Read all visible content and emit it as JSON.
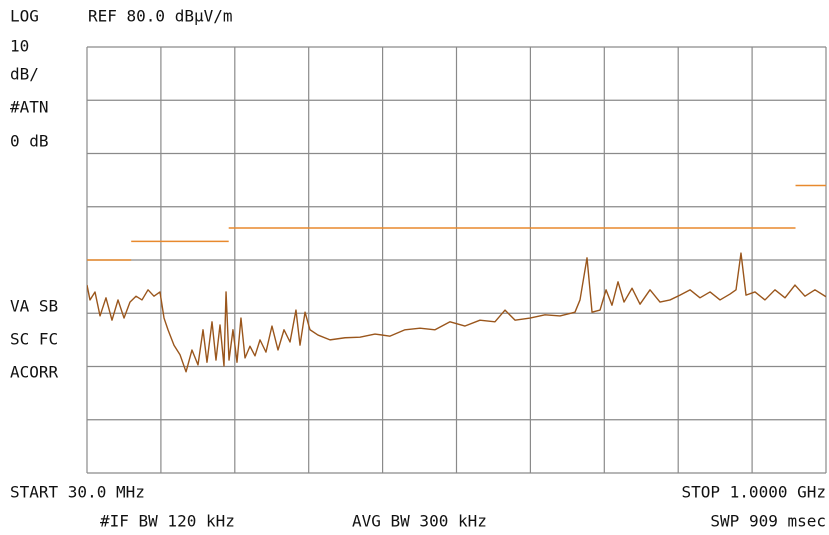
{
  "chart_data": {
    "type": "line",
    "scale_mode": "LOG",
    "reference": "REF 80.0 dBµV/m",
    "left_status": [
      "10",
      "dB/",
      "#ATN",
      "0 dB"
    ],
    "left_flags": [
      "VA SB",
      "SC FC",
      "ACORR"
    ],
    "start_label": "START 30.0 MHz",
    "stop_label": "STOP 1.0000 GHz",
    "bandwidth_labels": [
      "#IF BW 120 kHz",
      "AVG BW 300 kHz"
    ],
    "sweep_label": "SWP 909 msec",
    "xlim": [
      30,
      1000
    ],
    "xticks": [
      30,
      127,
      224,
      321,
      418,
      515,
      612,
      709,
      806,
      903,
      1000
    ],
    "ylim": [
      0,
      80
    ],
    "yticks": [
      0,
      10,
      20,
      30,
      40,
      50,
      60,
      70,
      80
    ],
    "grid": true,
    "x": [
      30,
      33.9,
      40.5,
      47.1,
      54.9,
      62.8,
      70.7,
      78.6,
      86.4,
      94.3,
      102.2,
      110.1,
      117.9,
      125.8,
      131.1,
      136.3,
      144.2,
      152.1,
      160.0,
      167.8,
      175.7,
      182.3,
      187.5,
      194.1,
      199.3,
      204.6,
      209.8,
      212.5,
      216.4,
      221.6,
      226.9,
      232.1,
      237.4,
      243.9,
      250.5,
      257.1,
      264.9,
      272.8,
      280.7,
      288.6,
      296.5,
      304.3,
      309.6,
      316.2,
      322.7,
      333.2,
      349.0,
      368.7,
      388.3,
      408.0,
      427.7,
      447.4,
      467.1,
      486.8,
      506.5,
      526.2,
      545.8,
      565.5,
      578.7,
      591.8,
      611.5,
      631.2,
      650.9,
      670.5,
      677.1,
      686.3,
      692.9,
      703.4,
      711.3,
      719.1,
      727.0,
      734.9,
      745.4,
      755.9,
      769.0,
      782.1,
      795.3,
      808.4,
      821.5,
      834.6,
      847.8,
      860.9,
      874.0,
      881.9,
      888.4,
      895.0,
      906.8,
      919.9,
      933.0,
      946.2,
      959.3,
      972.4,
      985.5,
      1000
    ],
    "series": [
      {
        "color": "#9a561c",
        "values": [
          35.3,
          32.5,
          34.0,
          29.5,
          32.9,
          28.7,
          32.5,
          29.1,
          32.1,
          33.2,
          32.5,
          34.4,
          33.2,
          34.0,
          29.1,
          26.9,
          24.0,
          22.2,
          19.0,
          23.1,
          20.3,
          26.9,
          20.8,
          28.4,
          21.2,
          27.8,
          20.1,
          34.0,
          21.2,
          26.9,
          20.8,
          29.1,
          21.6,
          23.8,
          22.0,
          25.0,
          22.7,
          27.6,
          23.1,
          26.9,
          24.6,
          30.6,
          24.0,
          30.2,
          26.9,
          25.9,
          25.0,
          25.4,
          25.5,
          26.1,
          25.7,
          26.9,
          27.2,
          26.9,
          28.4,
          27.6,
          28.7,
          28.4,
          30.6,
          28.7,
          29.1,
          29.7,
          29.5,
          30.2,
          32.5,
          40.4,
          30.2,
          30.6,
          34.4,
          31.5,
          35.9,
          32.1,
          34.7,
          31.7,
          34.4,
          32.1,
          32.5,
          33.4,
          34.4,
          32.9,
          34.0,
          32.5,
          33.6,
          34.4,
          41.3,
          33.4,
          34.0,
          32.5,
          34.4,
          32.9,
          35.3,
          33.2,
          34.4,
          33.1
        ]
      }
    ],
    "limit_color": "#e8892d",
    "limit_segments": [
      {
        "start": 30,
        "stop": 88,
        "value": 40
      },
      {
        "start": 88,
        "stop": 216,
        "value": 43.5
      },
      {
        "start": 216,
        "stop": 960,
        "value": 46
      },
      {
        "start": 960,
        "stop": 1000,
        "value": 54
      }
    ]
  }
}
